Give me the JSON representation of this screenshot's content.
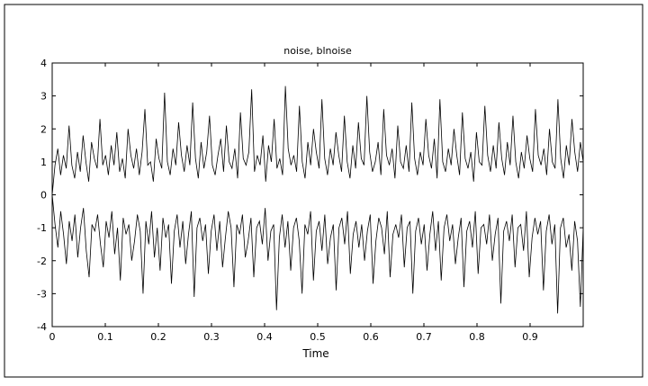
{
  "chart_data": {
    "type": "line",
    "title": "noise, blnoise",
    "xlabel": "Time",
    "ylabel": "",
    "xlim": [
      0,
      1
    ],
    "ylim": [
      -4,
      4
    ],
    "xticks": [
      "0",
      "0.1",
      "0.2",
      "0.3",
      "0.4",
      "0.5",
      "0.6",
      "0.7",
      "0.8",
      "0.9"
    ],
    "xtick_values": [
      0,
      0.1,
      0.2,
      0.3,
      0.4,
      0.5,
      0.6,
      0.7,
      0.8,
      0.9
    ],
    "yticks": [
      "-4",
      "-3",
      "-2",
      "-1",
      "0",
      "1",
      "2",
      "3",
      "4"
    ],
    "ytick_values": [
      -4,
      -3,
      -2,
      -1,
      0,
      1,
      2,
      3,
      4
    ],
    "grid": false,
    "line_color": "#000000",
    "series": [
      {
        "description_values": "upper trace, noise offset around +1",
        "x_start": 0,
        "x_end": 1,
        "values": [
          0.0,
          0.9,
          1.4,
          0.6,
          1.2,
          0.8,
          2.1,
          0.9,
          0.5,
          1.3,
          0.7,
          1.8,
          1.0,
          0.4,
          1.6,
          1.1,
          0.8,
          2.3,
          0.9,
          1.2,
          0.6,
          1.5,
          0.9,
          1.9,
          0.7,
          1.1,
          0.5,
          2.0,
          1.2,
          0.8,
          1.4,
          0.6,
          1.3,
          2.6,
          0.9,
          1.0,
          0.4,
          1.7,
          1.1,
          0.8,
          3.1,
          1.0,
          0.6,
          1.4,
          0.9,
          2.2,
          1.2,
          0.7,
          1.5,
          0.9,
          2.8,
          1.1,
          0.5,
          1.6,
          0.8,
          1.3,
          2.4,
          0.9,
          0.6,
          1.2,
          1.7,
          0.7,
          2.1,
          1.0,
          0.8,
          1.4,
          0.5,
          2.5,
          1.1,
          0.9,
          1.3,
          3.2,
          0.7,
          1.2,
          0.9,
          1.8,
          0.4,
          1.5,
          1.0,
          2.3,
          0.8,
          1.1,
          0.6,
          3.3,
          1.4,
          0.9,
          1.2,
          0.7,
          2.7,
          1.0,
          0.5,
          1.6,
          0.9,
          2.0,
          1.3,
          0.8,
          2.9,
          1.1,
          0.6,
          1.4,
          0.9,
          1.9,
          1.2,
          0.7,
          2.4,
          1.0,
          0.5,
          1.5,
          0.8,
          2.2,
          1.1,
          0.9,
          3.0,
          1.3,
          0.7,
          1.0,
          1.6,
          0.6,
          2.6,
          1.2,
          0.9,
          1.4,
          0.5,
          2.1,
          1.0,
          0.8,
          1.5,
          0.7,
          2.8,
          1.1,
          0.6,
          1.3,
          0.9,
          2.3,
          1.2,
          0.8,
          1.7,
          0.5,
          2.9,
          1.0,
          0.7,
          1.4,
          0.9,
          2.0,
          1.2,
          0.6,
          2.5,
          1.1,
          0.8,
          1.3,
          0.4,
          1.9,
          1.0,
          0.9,
          2.7,
          1.2,
          0.7,
          1.5,
          0.8,
          2.2,
          1.1,
          0.6,
          1.6,
          0.9,
          2.4,
          1.0,
          0.5,
          1.3,
          0.8,
          1.8,
          1.1,
          0.7,
          2.6,
          1.2,
          0.9,
          1.4,
          0.6,
          2.0,
          1.0,
          0.8,
          2.9,
          1.1,
          0.5,
          1.5,
          0.9,
          2.3,
          1.3,
          0.7,
          1.6,
          1.0
        ]
      },
      {
        "description_values": "lower trace, noise offset around -1",
        "x_start": 0,
        "x_end": 1,
        "values": [
          0.0,
          -0.9,
          -1.6,
          -0.5,
          -1.2,
          -2.1,
          -0.8,
          -1.4,
          -0.6,
          -1.9,
          -1.0,
          -0.4,
          -1.7,
          -2.5,
          -0.9,
          -1.1,
          -0.6,
          -1.5,
          -2.2,
          -0.8,
          -1.3,
          -0.5,
          -1.8,
          -1.0,
          -2.6,
          -0.7,
          -1.2,
          -0.9,
          -2.0,
          -1.4,
          -0.6,
          -1.1,
          -3.0,
          -0.8,
          -1.5,
          -0.5,
          -1.9,
          -1.0,
          -2.3,
          -0.7,
          -1.3,
          -0.9,
          -2.7,
          -1.1,
          -0.6,
          -1.6,
          -0.8,
          -2.1,
          -1.2,
          -0.5,
          -3.1,
          -1.0,
          -0.7,
          -1.4,
          -0.9,
          -2.4,
          -1.1,
          -0.6,
          -1.7,
          -0.8,
          -2.2,
          -1.3,
          -0.5,
          -1.0,
          -2.8,
          -0.9,
          -1.2,
          -0.6,
          -1.9,
          -1.4,
          -0.7,
          -2.5,
          -1.0,
          -0.8,
          -1.5,
          -0.4,
          -2.0,
          -1.1,
          -0.9,
          -3.5,
          -1.3,
          -0.6,
          -1.6,
          -0.8,
          -2.3,
          -1.0,
          -0.7,
          -1.4,
          -3.0,
          -0.9,
          -1.2,
          -0.5,
          -2.6,
          -1.1,
          -0.8,
          -1.7,
          -0.6,
          -2.1,
          -1.3,
          -0.9,
          -2.9,
          -1.0,
          -0.7,
          -1.5,
          -0.5,
          -2.4,
          -1.2,
          -0.8,
          -1.6,
          -0.9,
          -2.0,
          -1.1,
          -0.6,
          -2.7,
          -1.4,
          -0.7,
          -1.0,
          -1.8,
          -0.5,
          -2.5,
          -1.2,
          -0.9,
          -1.3,
          -0.6,
          -2.2,
          -1.0,
          -0.8,
          -3.0,
          -1.1,
          -0.7,
          -1.5,
          -0.9,
          -2.3,
          -1.2,
          -0.5,
          -1.7,
          -0.8,
          -2.6,
          -1.0,
          -0.6,
          -1.4,
          -0.9,
          -2.1,
          -1.3,
          -0.7,
          -2.8,
          -1.1,
          -0.8,
          -1.6,
          -0.5,
          -2.4,
          -1.0,
          -0.9,
          -1.5,
          -0.6,
          -2.0,
          -1.2,
          -0.7,
          -3.3,
          -1.1,
          -0.8,
          -1.4,
          -0.6,
          -2.2,
          -1.0,
          -0.9,
          -1.7,
          -0.5,
          -2.5,
          -1.3,
          -0.7,
          -1.2,
          -0.8,
          -2.9,
          -1.1,
          -0.6,
          -1.5,
          -0.9,
          -3.6,
          -1.0,
          -0.7,
          -1.6,
          -1.2,
          -2.3,
          -0.8,
          -1.4,
          -3.4,
          -1.0
        ]
      }
    ]
  }
}
